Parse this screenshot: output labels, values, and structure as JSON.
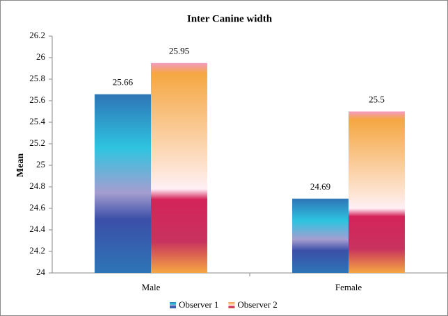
{
  "chart_data": {
    "type": "bar",
    "title": "Inter Canine width",
    "y_label": "Mean",
    "categories": [
      "Male",
      "Female"
    ],
    "series": [
      {
        "name": "Observer 1",
        "color": "#2e75b6",
        "values": [
          25.66,
          24.69
        ]
      },
      {
        "name": "Observer 2",
        "color": "#f5a742",
        "values": [
          25.95,
          25.5
        ]
      }
    ],
    "ylim": [
      24,
      26.2
    ],
    "yticks": [
      24,
      24.2,
      24.4,
      24.6,
      24.8,
      25,
      25.2,
      25.4,
      25.6,
      25.8,
      26,
      26.2
    ],
    "grid": false,
    "legend": "bottom"
  }
}
